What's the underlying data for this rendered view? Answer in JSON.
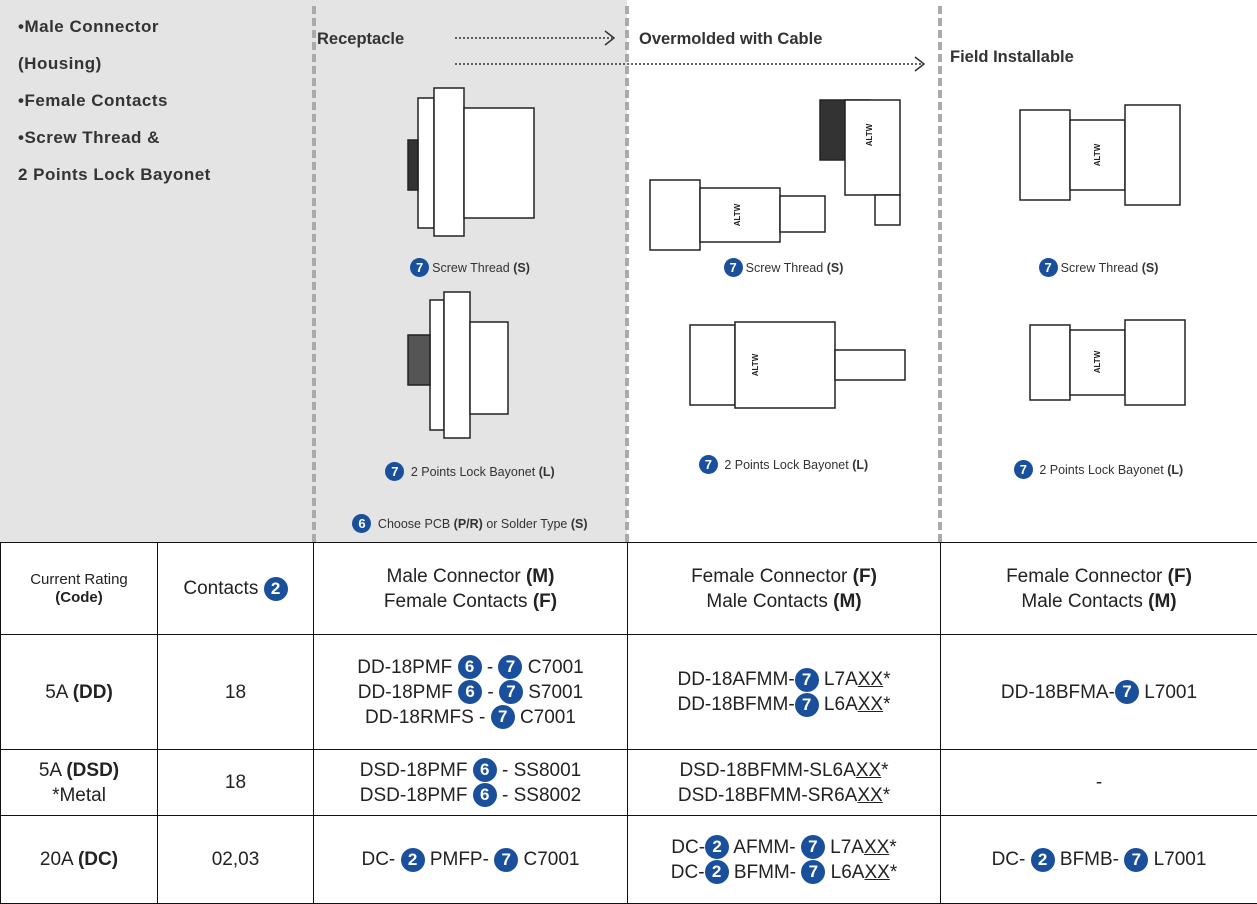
{
  "intro": {
    "lines": [
      "•Male Connector",
      "(Housing)",
      "•Female Contacts",
      "•Screw Thread &",
      "2 Points Lock Bayonet"
    ]
  },
  "drawing_label": "ALTW",
  "columns": [
    {
      "title": "Receptacle",
      "captions": [
        [
          {
            "b": "7"
          },
          {
            "t": "Screw Thread "
          },
          {
            "s": "(S)"
          }
        ],
        [
          {
            "b": "7"
          },
          {
            "t": " 2 Points Lock Bayonet "
          },
          {
            "s": "(L)"
          }
        ],
        [
          {
            "b": "6"
          },
          {
            "t": " Choose PCB "
          },
          {
            "s": "(P/R)"
          },
          {
            "t": " or Solder Type "
          },
          {
            "s": "(S)"
          }
        ]
      ]
    },
    {
      "title": "Overmolded with Cable",
      "captions": [
        [
          {
            "b": "7"
          },
          {
            "t": "Screw Thread "
          },
          {
            "s": "(S)"
          }
        ],
        [
          {
            "b": "7"
          },
          {
            "t": " 2 Points Lock Bayonet "
          },
          {
            "s": "(L)"
          }
        ]
      ]
    },
    {
      "title": "Field Installable",
      "captions": [
        [
          {
            "b": "7"
          },
          {
            "t": "Screw Thread "
          },
          {
            "s": "(S)"
          }
        ],
        [
          {
            "b": "7"
          },
          {
            "t": " 2 Points Lock Bayonet "
          },
          {
            "s": "(L)"
          }
        ]
      ]
    }
  ],
  "table": {
    "header": [
      [
        [
          {
            "t": "Current Rating"
          }
        ],
        [
          {
            "s": "(Code)"
          }
        ]
      ],
      [
        [
          {
            "t": "Contacts "
          },
          {
            "b": "2"
          }
        ]
      ],
      [
        [
          {
            "t": "Male Connector "
          },
          {
            "s": "(M)"
          }
        ],
        [
          {
            "t": "Female Contacts "
          },
          {
            "s": "(F)"
          }
        ]
      ],
      [
        [
          {
            "t": "Female Connector "
          },
          {
            "s": "(F)"
          }
        ],
        [
          {
            "t": "Male Contacts "
          },
          {
            "s": "(M)"
          }
        ]
      ],
      [
        [
          {
            "t": "Female Connector "
          },
          {
            "s": "(F)"
          }
        ],
        [
          {
            "t": "Male Contacts "
          },
          {
            "s": "(M)"
          }
        ]
      ]
    ],
    "rows": [
      [
        [
          [
            {
              "t": "5A "
            },
            {
              "s": "(DD)"
            }
          ]
        ],
        [
          [
            {
              "t": "18"
            }
          ]
        ],
        [
          [
            {
              "t": "DD-18PMF "
            },
            {
              "b": "6"
            },
            {
              "t": " - "
            },
            {
              "b": "7"
            },
            {
              "t": " C7001"
            }
          ],
          [
            {
              "t": "DD-18PMF "
            },
            {
              "b": "6"
            },
            {
              "t": " - "
            },
            {
              "b": "7"
            },
            {
              "t": " S7001"
            }
          ],
          [
            {
              "t": "DD-18RMFS - "
            },
            {
              "b": "7"
            },
            {
              "t": " C7001"
            }
          ]
        ],
        [
          [
            {
              "t": "DD-18AFMM-"
            },
            {
              "b": "7"
            },
            {
              "t": " L7A"
            },
            {
              "u": "XX"
            },
            {
              "t": "*"
            }
          ],
          [
            {
              "t": "DD-18BFMM-"
            },
            {
              "b": "7"
            },
            {
              "t": " L6A"
            },
            {
              "u": "XX"
            },
            {
              "t": "*"
            }
          ]
        ],
        [
          [
            {
              "t": "DD-18BFMA-"
            },
            {
              "b": "7"
            },
            {
              "t": " L7001"
            }
          ]
        ]
      ],
      [
        [
          [
            {
              "t": "5A "
            },
            {
              "s": "(DSD)"
            }
          ],
          [
            {
              "t": "*Metal"
            }
          ]
        ],
        [
          [
            {
              "t": "18"
            }
          ]
        ],
        [
          [
            {
              "t": "DSD-18PMF "
            },
            {
              "b": "6"
            },
            {
              "t": " - SS8001"
            }
          ],
          [
            {
              "t": "DSD-18PMF "
            },
            {
              "b": "6"
            },
            {
              "t": " - SS8002"
            }
          ]
        ],
        [
          [
            {
              "t": "DSD-18BFMM-SL6A"
            },
            {
              "u": "XX"
            },
            {
              "t": "*"
            }
          ],
          [
            {
              "t": "DSD-18BFMM-SR6A"
            },
            {
              "u": "XX"
            },
            {
              "t": "*"
            }
          ]
        ],
        [
          [
            {
              "t": "-"
            }
          ]
        ]
      ],
      [
        [
          [
            {
              "t": "20A "
            },
            {
              "s": "(DC)"
            }
          ]
        ],
        [
          [
            {
              "t": "02,03"
            }
          ]
        ],
        [
          [
            {
              "t": "DC- "
            },
            {
              "b": "2"
            },
            {
              "t": " PMFP- "
            },
            {
              "b": "7"
            },
            {
              "t": " C7001"
            }
          ]
        ],
        [
          [
            {
              "t": "DC-"
            },
            {
              "b": "2"
            },
            {
              "t": " AFMM- "
            },
            {
              "b": "7"
            },
            {
              "t": " L7A"
            },
            {
              "u": "XX"
            },
            {
              "t": "*"
            }
          ],
          [
            {
              "t": "DC-"
            },
            {
              "b": "2"
            },
            {
              "t": " BFMM- "
            },
            {
              "b": "7"
            },
            {
              "t": " L6A"
            },
            {
              "u": "XX"
            },
            {
              "t": "*"
            }
          ]
        ],
        [
          [
            {
              "t": "DC- "
            },
            {
              "b": "2"
            },
            {
              "t": " BFMB- "
            },
            {
              "b": "7"
            },
            {
              "t": " L7001"
            }
          ]
        ]
      ]
    ]
  }
}
